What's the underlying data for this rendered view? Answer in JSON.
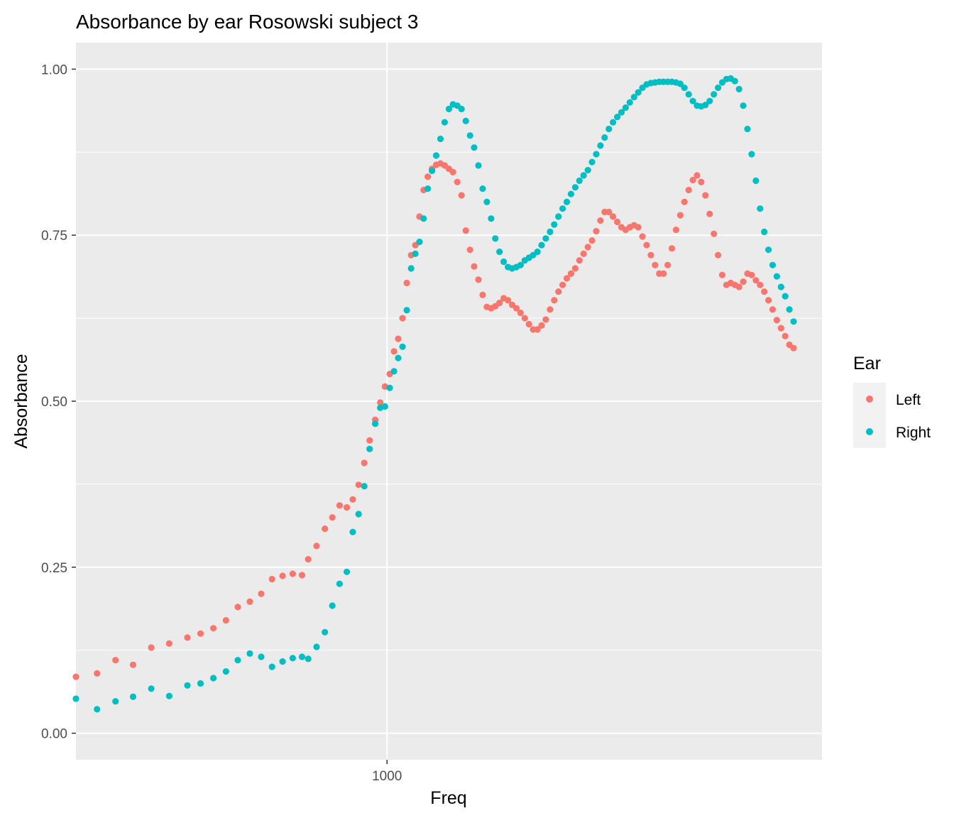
{
  "chart_data": {
    "type": "scatter",
    "title": "Absorbance by ear Rosowski subject 3",
    "xlabel": "Freq",
    "ylabel": "Absorbance",
    "x_scale": "log10",
    "xlim": [
      226,
      8000
    ],
    "ylim": [
      -0.04,
      1.04
    ],
    "x_ticks": [
      {
        "value": 1000,
        "label": "1000"
      }
    ],
    "y_ticks": [
      {
        "value": 0,
        "label": "0.00"
      },
      {
        "value": 0.25,
        "label": "0.25"
      },
      {
        "value": 0.5,
        "label": "0.50"
      },
      {
        "value": 0.75,
        "label": "0.75"
      },
      {
        "value": 1,
        "label": "1.00"
      }
    ],
    "grid": true,
    "panel_background": "#ebebeb",
    "legend": {
      "title": "Ear",
      "position": "right",
      "entries": [
        {
          "label": "Left",
          "color": "#F8766D"
        },
        {
          "label": "Right",
          "color": "#00BFC4"
        }
      ]
    },
    "series": [
      {
        "name": "Left",
        "color": "#F8766D",
        "points": [
          [
            226,
            0.085
          ],
          [
            250,
            0.09
          ],
          [
            273,
            0.11
          ],
          [
            297,
            0.103
          ],
          [
            324,
            0.129
          ],
          [
            353,
            0.135
          ],
          [
            385,
            0.144
          ],
          [
            410,
            0.15
          ],
          [
            436,
            0.158
          ],
          [
            463,
            0.17
          ],
          [
            490,
            0.19
          ],
          [
            519,
            0.198
          ],
          [
            548,
            0.21
          ],
          [
            577,
            0.232
          ],
          [
            607,
            0.237
          ],
          [
            637,
            0.24
          ],
          [
            666,
            0.238
          ],
          [
            686,
            0.262
          ],
          [
            714,
            0.282
          ],
          [
            743,
            0.308
          ],
          [
            770,
            0.325
          ],
          [
            797,
            0.343
          ],
          [
            825,
            0.34
          ],
          [
            849,
            0.352
          ],
          [
            873,
            0.374
          ],
          [
            897,
            0.407
          ],
          [
            920,
            0.441
          ],
          [
            945,
            0.472
          ],
          [
            968,
            0.498
          ],
          [
            990,
            0.522
          ],
          [
            1013,
            0.541
          ],
          [
            1034,
            0.575
          ],
          [
            1055,
            0.594
          ],
          [
            1077,
            0.625
          ],
          [
            1099,
            0.678
          ],
          [
            1122,
            0.72
          ],
          [
            1145,
            0.735
          ],
          [
            1168,
            0.778
          ],
          [
            1191,
            0.818
          ],
          [
            1215,
            0.838
          ],
          [
            1240,
            0.85
          ],
          [
            1265,
            0.856
          ],
          [
            1291,
            0.858
          ],
          [
            1317,
            0.855
          ],
          [
            1344,
            0.85
          ],
          [
            1371,
            0.845
          ],
          [
            1399,
            0.83
          ],
          [
            1428,
            0.81
          ],
          [
            1457,
            0.757
          ],
          [
            1487,
            0.728
          ],
          [
            1517,
            0.703
          ],
          [
            1548,
            0.683
          ],
          [
            1580,
            0.66
          ],
          [
            1612,
            0.642
          ],
          [
            1645,
            0.64
          ],
          [
            1678,
            0.643
          ],
          [
            1712,
            0.648
          ],
          [
            1747,
            0.655
          ],
          [
            1783,
            0.652
          ],
          [
            1819,
            0.645
          ],
          [
            1856,
            0.64
          ],
          [
            1894,
            0.633
          ],
          [
            1932,
            0.625
          ],
          [
            1971,
            0.616
          ],
          [
            2011,
            0.608
          ],
          [
            2052,
            0.608
          ],
          [
            2094,
            0.614
          ],
          [
            2136,
            0.623
          ],
          [
            2180,
            0.638
          ],
          [
            2224,
            0.652
          ],
          [
            2269,
            0.665
          ],
          [
            2315,
            0.675
          ],
          [
            2362,
            0.685
          ],
          [
            2410,
            0.692
          ],
          [
            2459,
            0.7
          ],
          [
            2509,
            0.712
          ],
          [
            2560,
            0.722
          ],
          [
            2612,
            0.732
          ],
          [
            2665,
            0.742
          ],
          [
            2719,
            0.756
          ],
          [
            2774,
            0.772
          ],
          [
            2830,
            0.785
          ],
          [
            2888,
            0.785
          ],
          [
            2946,
            0.778
          ],
          [
            3006,
            0.77
          ],
          [
            3067,
            0.762
          ],
          [
            3129,
            0.758
          ],
          [
            3193,
            0.762
          ],
          [
            3258,
            0.765
          ],
          [
            3324,
            0.762
          ],
          [
            3391,
            0.748
          ],
          [
            3460,
            0.735
          ],
          [
            3530,
            0.72
          ],
          [
            3602,
            0.705
          ],
          [
            3675,
            0.692
          ],
          [
            3749,
            0.692
          ],
          [
            3825,
            0.705
          ],
          [
            3903,
            0.73
          ],
          [
            3982,
            0.758
          ],
          [
            4063,
            0.78
          ],
          [
            4145,
            0.8
          ],
          [
            4229,
            0.818
          ],
          [
            4315,
            0.833
          ],
          [
            4402,
            0.84
          ],
          [
            4492,
            0.83
          ],
          [
            4583,
            0.81
          ],
          [
            4676,
            0.782
          ],
          [
            4771,
            0.752
          ],
          [
            4868,
            0.72
          ],
          [
            4966,
            0.69
          ],
          [
            5067,
            0.675
          ],
          [
            5170,
            0.678
          ],
          [
            5275,
            0.675
          ],
          [
            5382,
            0.672
          ],
          [
            5491,
            0.68
          ],
          [
            5602,
            0.692
          ],
          [
            5716,
            0.69
          ],
          [
            5832,
            0.682
          ],
          [
            5950,
            0.675
          ],
          [
            6071,
            0.665
          ],
          [
            6194,
            0.652
          ],
          [
            6319,
            0.638
          ],
          [
            6447,
            0.622
          ],
          [
            6578,
            0.61
          ],
          [
            6711,
            0.598
          ],
          [
            6847,
            0.585
          ],
          [
            6985,
            0.58
          ]
        ]
      },
      {
        "name": "Right",
        "color": "#00BFC4",
        "points": [
          [
            226,
            0.052
          ],
          [
            250,
            0.036
          ],
          [
            273,
            0.048
          ],
          [
            297,
            0.055
          ],
          [
            324,
            0.067
          ],
          [
            353,
            0.056
          ],
          [
            385,
            0.072
          ],
          [
            410,
            0.075
          ],
          [
            436,
            0.083
          ],
          [
            463,
            0.093
          ],
          [
            490,
            0.11
          ],
          [
            519,
            0.12
          ],
          [
            548,
            0.115
          ],
          [
            577,
            0.1
          ],
          [
            607,
            0.108
          ],
          [
            637,
            0.113
          ],
          [
            666,
            0.115
          ],
          [
            686,
            0.112
          ],
          [
            714,
            0.13
          ],
          [
            743,
            0.152
          ],
          [
            770,
            0.192
          ],
          [
            797,
            0.225
          ],
          [
            825,
            0.243
          ],
          [
            849,
            0.303
          ],
          [
            873,
            0.33
          ],
          [
            897,
            0.372
          ],
          [
            920,
            0.428
          ],
          [
            945,
            0.466
          ],
          [
            968,
            0.49
          ],
          [
            990,
            0.492
          ],
          [
            1013,
            0.52
          ],
          [
            1034,
            0.545
          ],
          [
            1055,
            0.565
          ],
          [
            1077,
            0.582
          ],
          [
            1099,
            0.637
          ],
          [
            1122,
            0.7
          ],
          [
            1145,
            0.722
          ],
          [
            1168,
            0.74
          ],
          [
            1191,
            0.775
          ],
          [
            1215,
            0.82
          ],
          [
            1240,
            0.847
          ],
          [
            1265,
            0.87
          ],
          [
            1291,
            0.895
          ],
          [
            1317,
            0.92
          ],
          [
            1344,
            0.94
          ],
          [
            1371,
            0.947
          ],
          [
            1399,
            0.945
          ],
          [
            1428,
            0.94
          ],
          [
            1457,
            0.922
          ],
          [
            1487,
            0.9
          ],
          [
            1517,
            0.882
          ],
          [
            1548,
            0.855
          ],
          [
            1580,
            0.82
          ],
          [
            1612,
            0.8
          ],
          [
            1645,
            0.775
          ],
          [
            1678,
            0.745
          ],
          [
            1712,
            0.725
          ],
          [
            1747,
            0.71
          ],
          [
            1783,
            0.702
          ],
          [
            1819,
            0.7
          ],
          [
            1856,
            0.702
          ],
          [
            1894,
            0.705
          ],
          [
            1932,
            0.712
          ],
          [
            1971,
            0.716
          ],
          [
            2011,
            0.72
          ],
          [
            2052,
            0.725
          ],
          [
            2094,
            0.735
          ],
          [
            2136,
            0.745
          ],
          [
            2180,
            0.755
          ],
          [
            2224,
            0.766
          ],
          [
            2269,
            0.778
          ],
          [
            2315,
            0.79
          ],
          [
            2362,
            0.8
          ],
          [
            2410,
            0.812
          ],
          [
            2459,
            0.822
          ],
          [
            2509,
            0.832
          ],
          [
            2560,
            0.84
          ],
          [
            2612,
            0.848
          ],
          [
            2665,
            0.86
          ],
          [
            2719,
            0.872
          ],
          [
            2774,
            0.885
          ],
          [
            2830,
            0.897
          ],
          [
            2888,
            0.91
          ],
          [
            2946,
            0.92
          ],
          [
            3006,
            0.928
          ],
          [
            3067,
            0.935
          ],
          [
            3129,
            0.942
          ],
          [
            3193,
            0.95
          ],
          [
            3258,
            0.958
          ],
          [
            3324,
            0.965
          ],
          [
            3391,
            0.972
          ],
          [
            3460,
            0.977
          ],
          [
            3530,
            0.979
          ],
          [
            3602,
            0.98
          ],
          [
            3675,
            0.981
          ],
          [
            3749,
            0.981
          ],
          [
            3825,
            0.981
          ],
          [
            3903,
            0.981
          ],
          [
            3982,
            0.98
          ],
          [
            4063,
            0.978
          ],
          [
            4145,
            0.972
          ],
          [
            4229,
            0.962
          ],
          [
            4315,
            0.952
          ],
          [
            4402,
            0.945
          ],
          [
            4492,
            0.944
          ],
          [
            4583,
            0.946
          ],
          [
            4676,
            0.952
          ],
          [
            4771,
            0.962
          ],
          [
            4868,
            0.972
          ],
          [
            4966,
            0.98
          ],
          [
            5067,
            0.985
          ],
          [
            5170,
            0.986
          ],
          [
            5275,
            0.982
          ],
          [
            5382,
            0.97
          ],
          [
            5491,
            0.945
          ],
          [
            5602,
            0.91
          ],
          [
            5716,
            0.872
          ],
          [
            5832,
            0.832
          ],
          [
            5950,
            0.79
          ],
          [
            6071,
            0.755
          ],
          [
            6194,
            0.728
          ],
          [
            6319,
            0.705
          ],
          [
            6447,
            0.688
          ],
          [
            6578,
            0.672
          ],
          [
            6711,
            0.658
          ],
          [
            6847,
            0.638
          ],
          [
            6985,
            0.62
          ]
        ]
      }
    ]
  }
}
